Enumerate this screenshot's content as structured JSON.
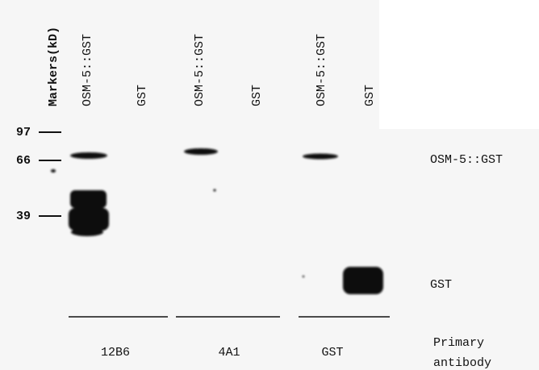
{
  "lanes": [
    "Markers(kD)",
    "OSM-5::GST",
    "GST",
    "OSM-5::GST",
    "GST",
    "OSM-5::GST",
    "GST"
  ],
  "markers": [
    "97",
    "66",
    "39"
  ],
  "band_labels": [
    "OSM-5::GST",
    "GST"
  ],
  "antibodies": [
    "12B6",
    "4A1",
    "GST"
  ],
  "antibody_title": [
    "Primary",
    "antibody"
  ]
}
